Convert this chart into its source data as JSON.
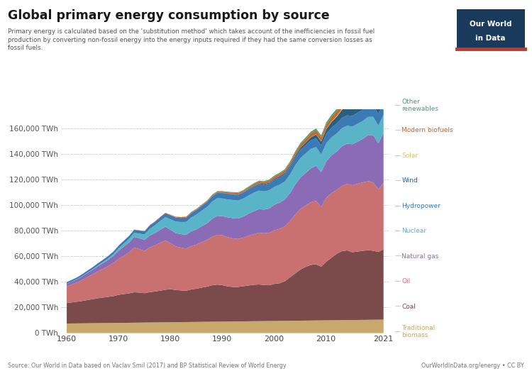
{
  "title": "Global primary energy consumption by source",
  "subtitle": "Primary energy is calculated based on the 'substitution method' which takes account of the inefficiencies in fossil fuel\nproduction by converting non-fossil energy into the energy inputs required if they had the same conversion losses as\nfossil fuels.",
  "source": "Source: Our World in Data based on Vaclav Smil (2017) and BP Statistical Review of World Energy",
  "source_right": "OurWorldInData.org/energy • CC BY",
  "years": [
    1960,
    1961,
    1962,
    1963,
    1964,
    1965,
    1966,
    1967,
    1968,
    1969,
    1970,
    1971,
    1972,
    1973,
    1974,
    1975,
    1976,
    1977,
    1978,
    1979,
    1980,
    1981,
    1982,
    1983,
    1984,
    1985,
    1986,
    1987,
    1988,
    1989,
    1990,
    1991,
    1992,
    1993,
    1994,
    1995,
    1996,
    1997,
    1998,
    1999,
    2000,
    2001,
    2002,
    2003,
    2004,
    2005,
    2006,
    2007,
    2008,
    2009,
    2010,
    2011,
    2012,
    2013,
    2014,
    2015,
    2016,
    2017,
    2018,
    2019,
    2020,
    2021
  ],
  "traditional_biomass": [
    7500,
    7550,
    7600,
    7650,
    7700,
    7750,
    7800,
    7850,
    7900,
    7950,
    8000,
    8050,
    8100,
    8150,
    8200,
    8250,
    8300,
    8350,
    8400,
    8450,
    8500,
    8550,
    8600,
    8650,
    8700,
    8750,
    8800,
    8850,
    8900,
    8950,
    9000,
    9050,
    9100,
    9150,
    9200,
    9250,
    9300,
    9350,
    9400,
    9450,
    9500,
    9550,
    9600,
    9650,
    9700,
    9750,
    9800,
    9850,
    9900,
    9950,
    10000,
    10050,
    10100,
    10150,
    10200,
    10250,
    10300,
    10350,
    10400,
    10450,
    10500,
    10550
  ],
  "coal": [
    16000,
    16500,
    17000,
    17500,
    18200,
    18800,
    19500,
    20000,
    20500,
    21000,
    22000,
    22500,
    23000,
    23800,
    23500,
    23000,
    23800,
    24200,
    24800,
    25500,
    25800,
    25200,
    24800,
    24500,
    25500,
    26000,
    26800,
    27500,
    28500,
    29000,
    28500,
    27500,
    27000,
    27000,
    27500,
    28000,
    28500,
    28700,
    28200,
    28000,
    29000,
    29500,
    31000,
    34000,
    37000,
    40000,
    42000,
    43500,
    44000,
    42000,
    46000,
    49000,
    52000,
    54000,
    54500,
    53000,
    53500,
    54000,
    54500,
    54000,
    53000,
    55000
  ],
  "oil": [
    13000,
    14000,
    15000,
    16500,
    18000,
    19500,
    21000,
    22500,
    24000,
    26000,
    28000,
    30000,
    32000,
    35000,
    34000,
    33000,
    35000,
    36000,
    37500,
    38500,
    36000,
    34000,
    33500,
    33000,
    34000,
    34500,
    35500,
    36500,
    38000,
    39000,
    39000,
    38500,
    38000,
    37500,
    38000,
    39000,
    39500,
    40500,
    40500,
    41000,
    42000,
    42500,
    43000,
    44000,
    46000,
    47500,
    48000,
    49000,
    49500,
    47000,
    50000,
    50500,
    50000,
    51000,
    52000,
    52500,
    53000,
    53500,
    54000,
    53500,
    49000,
    52000
  ],
  "natural_gas": [
    2000,
    2200,
    2500,
    2800,
    3200,
    3500,
    4000,
    4500,
    5000,
    5500,
    6500,
    7200,
    7800,
    8300,
    8500,
    8700,
    9300,
    9800,
    10200,
    10800,
    10500,
    10500,
    10500,
    10800,
    11500,
    12000,
    12500,
    13000,
    14000,
    14800,
    15000,
    15500,
    15800,
    16000,
    16500,
    17200,
    18000,
    18500,
    18500,
    19000,
    20000,
    20500,
    21000,
    22000,
    23500,
    24500,
    25500,
    26500,
    27500,
    27000,
    28500,
    29500,
    30000,
    31000,
    31500,
    32000,
    33000,
    34000,
    36000,
    37000,
    36000,
    39000
  ],
  "nuclear": [
    100,
    120,
    150,
    200,
    300,
    400,
    600,
    800,
    1100,
    1400,
    1900,
    2300,
    2800,
    3200,
    3600,
    4200,
    5200,
    6000,
    6800,
    7500,
    8200,
    9000,
    9500,
    10000,
    10800,
    11500,
    12200,
    12800,
    13500,
    13800,
    13800,
    14000,
    14200,
    14000,
    14000,
    14200,
    14500,
    14400,
    14300,
    14200,
    14000,
    14100,
    14000,
    14500,
    15000,
    15200,
    15200,
    15200,
    14700,
    13800,
    14200,
    14100,
    14000,
    14200,
    14000,
    13800,
    14000,
    14000,
    14200,
    14300,
    13800,
    14200
  ],
  "hydropower": [
    1300,
    1350,
    1400,
    1470,
    1550,
    1620,
    1700,
    1780,
    1880,
    1980,
    2100,
    2200,
    2300,
    2400,
    2450,
    2550,
    2700,
    2800,
    2900,
    3000,
    3100,
    3150,
    3200,
    3350,
    3500,
    3600,
    3700,
    3800,
    4000,
    4100,
    4200,
    4350,
    4400,
    4500,
    4650,
    4800,
    5000,
    5100,
    5200,
    5350,
    5500,
    5650,
    5700,
    5900,
    6100,
    6300,
    6450,
    6600,
    6800,
    6900,
    7200,
    7500,
    7800,
    8000,
    8100,
    8300,
    8500,
    8700,
    8900,
    9000,
    9100,
    9300
  ],
  "wind": [
    0,
    0,
    0,
    0,
    0,
    0,
    0,
    0,
    0,
    0,
    0,
    0,
    0,
    0,
    0,
    0,
    0,
    0,
    0,
    0,
    0,
    5,
    10,
    20,
    30,
    40,
    60,
    80,
    110,
    140,
    180,
    220,
    260,
    300,
    350,
    400,
    450,
    520,
    600,
    700,
    800,
    950,
    1100,
    1250,
    1500,
    1800,
    2100,
    2500,
    3000,
    3200,
    3800,
    4600,
    5500,
    6400,
    7100,
    7800,
    8500,
    9500,
    10500,
    11500,
    11800,
    13500
  ],
  "solar": [
    0,
    0,
    0,
    0,
    0,
    0,
    0,
    0,
    0,
    0,
    0,
    0,
    0,
    0,
    0,
    0,
    0,
    0,
    0,
    0,
    0,
    0,
    0,
    0,
    0,
    0,
    0,
    0,
    0,
    0,
    0,
    0,
    0,
    0,
    0,
    0,
    5,
    10,
    15,
    20,
    25,
    30,
    40,
    50,
    70,
    90,
    120,
    160,
    200,
    220,
    280,
    350,
    500,
    750,
    1100,
    1500,
    2000,
    2600,
    3200,
    3900,
    4000,
    5500
  ],
  "modern_biofuels": [
    0,
    0,
    0,
    0,
    0,
    0,
    0,
    0,
    0,
    0,
    50,
    80,
    120,
    150,
    180,
    200,
    250,
    300,
    350,
    400,
    450,
    500,
    550,
    600,
    650,
    700,
    750,
    800,
    850,
    900,
    950,
    1000,
    1050,
    1100,
    1150,
    1200,
    1300,
    1400,
    1500,
    1600,
    1700,
    1800,
    1900,
    2000,
    2200,
    2400,
    2600,
    2800,
    3000,
    3100,
    3300,
    3500,
    3700,
    3900,
    4100,
    4300,
    4500,
    4700,
    4900,
    5100,
    5200,
    5400
  ],
  "other_renewables": [
    0,
    0,
    0,
    0,
    0,
    0,
    0,
    0,
    0,
    0,
    0,
    0,
    0,
    0,
    0,
    0,
    0,
    0,
    0,
    0,
    100,
    150,
    180,
    200,
    220,
    250,
    280,
    320,
    370,
    410,
    450,
    480,
    500,
    530,
    570,
    600,
    640,
    680,
    730,
    780,
    830,
    880,
    930,
    1000,
    1100,
    1200,
    1300,
    1400,
    1500,
    1550,
    1650,
    1750,
    1850,
    1950,
    2050,
    2150,
    2250,
    2350,
    2450,
    2550,
    2600,
    2750
  ],
  "colors": {
    "traditional_biomass": "#c9a86c",
    "coal": "#7b4b4b",
    "oil": "#c97070",
    "natural_gas": "#8b6bb5",
    "nuclear": "#5ab4c8",
    "hydropower": "#3a7ab5",
    "wind": "#2a5f82",
    "solar": "#e8c440",
    "modern_biofuels": "#c8652a",
    "other_renewables": "#4e9e72"
  },
  "ylim": [
    0,
    175000
  ],
  "yticks": [
    0,
    20000,
    40000,
    60000,
    80000,
    100000,
    120000,
    140000,
    160000
  ],
  "ytick_labels": [
    "0 TWh",
    "20,000 TWh",
    "40,000 TWh",
    "60,000 TWh",
    "80,000 TWh",
    "100,000 TWh",
    "120,000 TWh",
    "140,000 TWh",
    "160,000 TWh"
  ],
  "xticks": [
    1960,
    1970,
    1980,
    1990,
    2000,
    2010,
    2021
  ],
  "background_color": "#ffffff",
  "owid_box_color": "#1a3a5c",
  "owid_red": "#c0392b"
}
